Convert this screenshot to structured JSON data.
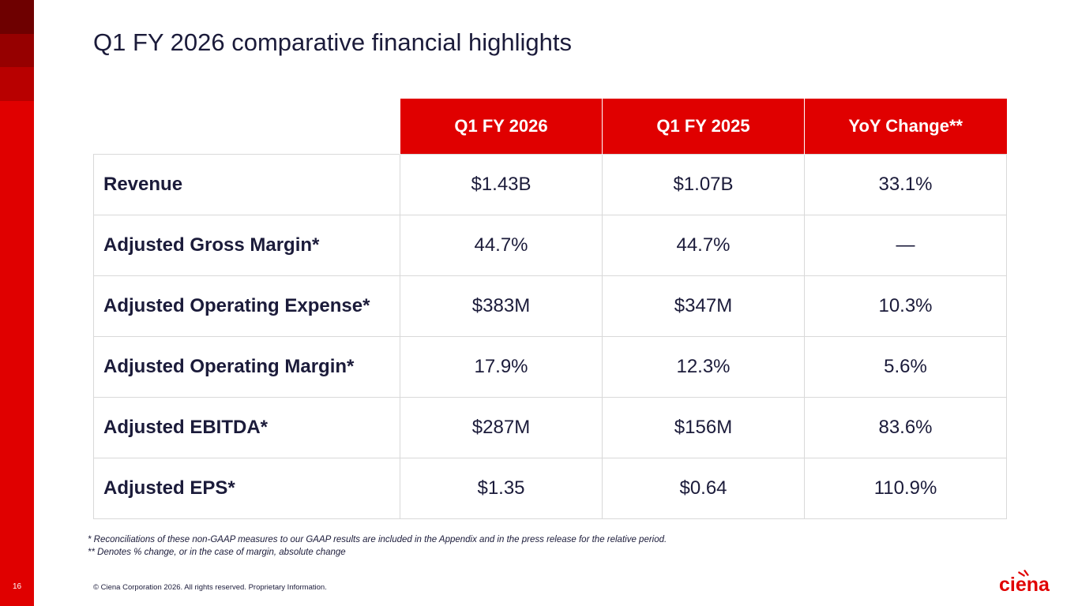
{
  "slide": {
    "page_number": "16",
    "title": "Q1 FY 2026 comparative financial highlights",
    "accent_color": "#e00000",
    "text_color": "#1b1b3a"
  },
  "table": {
    "headers": [
      "",
      "Q1 FY 2026",
      "Q1 FY 2025",
      "YoY Change**"
    ],
    "rows": [
      {
        "metric": "Revenue",
        "q1_fy2026": "$1.43B",
        "q1_fy2025": "$1.07B",
        "yoy": "33.1%"
      },
      {
        "metric": "Adjusted Gross Margin*",
        "q1_fy2026": "44.7%",
        "q1_fy2025": "44.7%",
        "yoy": "—"
      },
      {
        "metric": "Adjusted Operating Expense*",
        "q1_fy2026": "$383M",
        "q1_fy2025": "$347M",
        "yoy": "10.3%"
      },
      {
        "metric": "Adjusted Operating Margin*",
        "q1_fy2026": "17.9%",
        "q1_fy2025": "12.3%",
        "yoy": "5.6%"
      },
      {
        "metric": "Adjusted EBITDA*",
        "q1_fy2026": "$287M",
        "q1_fy2025": "$156M",
        "yoy": "83.6%"
      },
      {
        "metric": "Adjusted EPS*",
        "q1_fy2026": "$1.35",
        "q1_fy2025": "$0.64",
        "yoy": "110.9%"
      }
    ]
  },
  "footnotes": [
    "* Reconciliations of these non-GAAP measures to our GAAP results are included in the Appendix and in the press release for the relative period.",
    "** Denotes % change, or in the case of margin, absolute change"
  ],
  "footer": {
    "copyright": "© Ciena Corporation 2026. All rights reserved. Proprietary Information.",
    "logo_text": "ciena"
  }
}
